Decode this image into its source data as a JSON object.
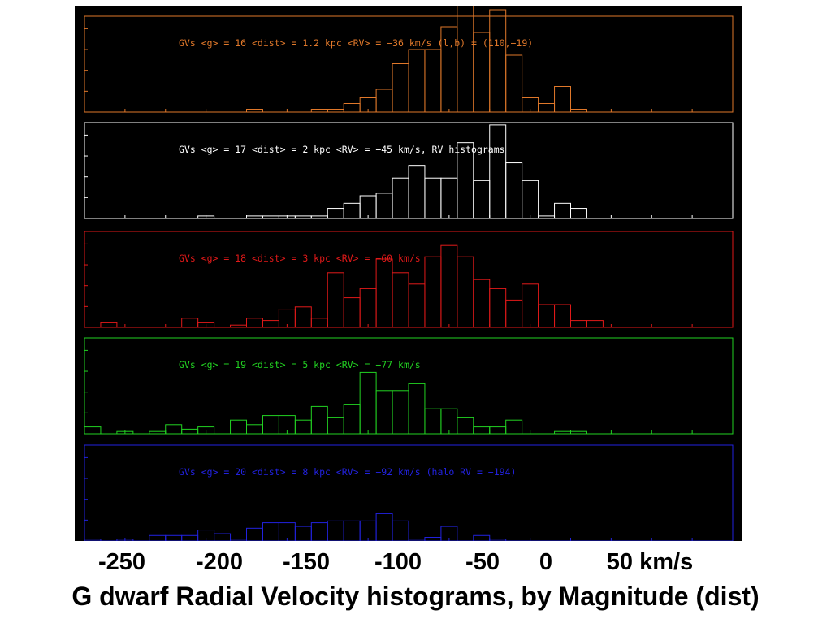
{
  "caption": "G dwarf Radial Velocity histograms, by Magnitude (dist)",
  "axis_labels": [
    "-250",
    "-200",
    "-150",
    "-100",
    "-50",
    "0",
    "50 km/s"
  ],
  "chart_data": [
    {
      "type": "bar",
      "label": "GVs  <g> = 16  <dist> = 1.2 kpc <RV> = −36 km/s (l,b) = (110,−19)",
      "color": "#e0782a",
      "x_range": [
        -250,
        150
      ],
      "bin_width": 10,
      "bin_start": -250,
      "ylim": [
        0,
        32
      ],
      "counts": [
        0,
        0,
        0,
        0,
        0,
        0,
        0,
        0,
        0,
        0,
        1,
        0,
        0,
        0,
        1,
        1,
        3,
        5,
        8,
        17,
        22,
        22,
        30,
        38,
        28,
        36,
        20,
        5,
        3,
        9,
        1,
        0,
        0,
        0,
        0,
        0,
        0,
        0,
        0,
        0
      ]
    },
    {
      "type": "bar",
      "label": "GVs  <g> = 17  <dist> = 2 kpc <RV> = −45 km/s, RV histograms",
      "color": "#ffffff",
      "x_range": [
        -250,
        150
      ],
      "bin_width": 10,
      "bin_start": -250,
      "ylim": [
        0,
        36
      ],
      "counts": [
        0,
        0,
        0,
        0,
        0,
        0,
        0,
        1,
        0,
        0,
        1,
        1,
        1,
        1,
        1,
        4,
        6,
        9,
        10,
        16,
        21,
        16,
        16,
        30,
        15,
        37,
        22,
        15,
        1,
        6,
        4,
        0,
        0,
        0,
        0,
        0,
        0,
        0,
        0,
        0
      ]
    },
    {
      "type": "bar",
      "label": "GVs  <g> = 18  <dist> = 3 kpc <RV> = −60 km/s",
      "color": "#e11919",
      "x_range": [
        -250,
        150
      ],
      "bin_width": 10,
      "bin_start": -250,
      "ylim": [
        0,
        40
      ],
      "counts": [
        0,
        2,
        0,
        0,
        0,
        0,
        4,
        2,
        0,
        1,
        4,
        3,
        8,
        9,
        4,
        24,
        13,
        17,
        30,
        24,
        19,
        31,
        36,
        31,
        21,
        17,
        12,
        19,
        10,
        10,
        3,
        3,
        0,
        0,
        0,
        0,
        0,
        0,
        0,
        0
      ]
    },
    {
      "type": "bar",
      "label": "GVs  <g> = 19  <dist> = 5 kpc <RV> = −77 km/s",
      "color": "#22d222",
      "x_range": [
        -250,
        150
      ],
      "bin_width": 10,
      "bin_start": -250,
      "ylim": [
        0,
        40
      ],
      "counts": [
        3,
        0,
        1,
        0,
        1,
        4,
        2,
        3,
        0,
        6,
        4,
        8,
        8,
        6,
        12,
        7,
        13,
        27,
        19,
        19,
        22,
        11,
        11,
        7,
        3,
        3,
        6,
        0,
        0,
        1,
        1,
        0,
        0,
        0,
        0,
        0,
        0,
        0,
        0,
        0
      ]
    },
    {
      "type": "bar",
      "label": "GVs  <g> = 20  <dist> = 8 kpc <RV> = −92 km/s (halo RV = −194)",
      "color": "#2222e0",
      "x_range": [
        -250,
        150
      ],
      "bin_width": 10,
      "bin_start": -250,
      "ylim": [
        0,
        50
      ],
      "counts": [
        1,
        0,
        1,
        0,
        3,
        3,
        3,
        6,
        4,
        1,
        7,
        10,
        10,
        8,
        10,
        11,
        11,
        11,
        15,
        11,
        1,
        2,
        8,
        0,
        3,
        1,
        0,
        0,
        0,
        0,
        0,
        0,
        0,
        0,
        0,
        0,
        0,
        0,
        0,
        0
      ]
    }
  ]
}
